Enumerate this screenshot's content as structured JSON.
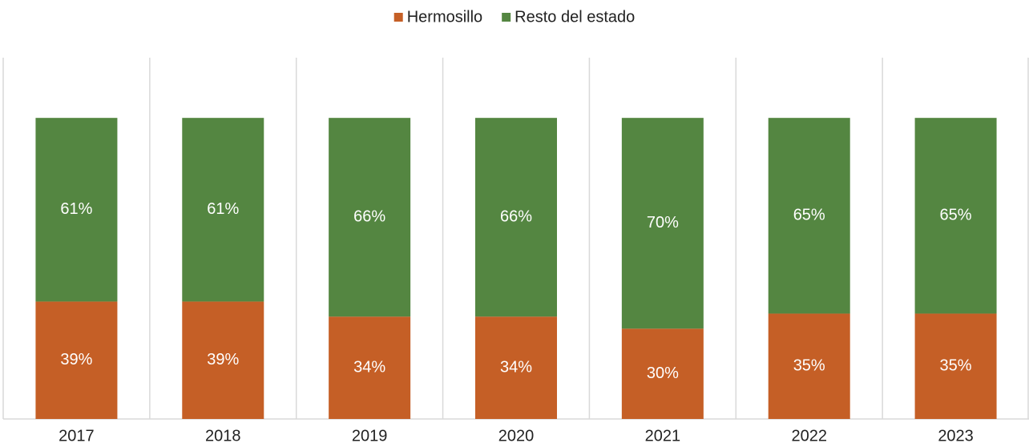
{
  "chart_data": {
    "type": "stacked_bar",
    "categories": [
      "2017",
      "2018",
      "2019",
      "2020",
      "2021",
      "2022",
      "2023"
    ],
    "series": [
      {
        "name": "Hermosillo",
        "color": "#c55f26",
        "values": [
          39,
          39,
          34,
          34,
          30,
          35,
          35
        ],
        "value_labels": [
          "39%",
          "39%",
          "34%",
          "34%",
          "30%",
          "35%",
          "35%"
        ]
      },
      {
        "name": "Resto del estado",
        "color": "#548641",
        "values": [
          61,
          61,
          66,
          66,
          70,
          65,
          65
        ],
        "value_labels": [
          "61%",
          "61%",
          "66%",
          "66%",
          "70%",
          "65%",
          "65%"
        ]
      }
    ],
    "ylim": [
      0,
      120
    ],
    "legend": "top"
  }
}
